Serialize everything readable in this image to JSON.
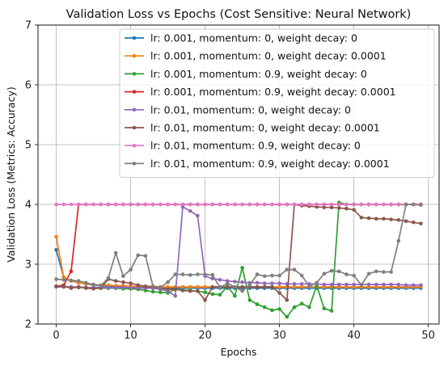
{
  "chart_data": {
    "type": "line",
    "title": "Validation Loss vs Epochs (Cost Sensitive: Neural Network)",
    "xlabel": "Epochs",
    "ylabel": "Validation Loss (Metrics: Accuracy)",
    "xlim": [
      -2.45,
      51.45
    ],
    "ylim": [
      2,
      7
    ],
    "xticks": [
      0,
      10,
      20,
      30,
      40,
      50
    ],
    "yticks": [
      2,
      3,
      4,
      5,
      6,
      7
    ],
    "grid": true,
    "legend_position": "top-right",
    "series": [
      {
        "name": "lr: 0.001, momentum: 0, weight decay: 0",
        "color": "#1f77b4",
        "values": [
          3.24,
          2.78,
          2.72,
          2.69,
          2.67,
          2.65,
          2.64,
          2.63,
          2.62,
          2.62,
          2.61,
          2.61,
          2.61,
          2.61,
          2.6,
          2.6,
          2.6,
          2.6,
          2.6,
          2.6,
          2.6,
          2.6,
          2.6,
          2.6,
          2.6,
          2.6,
          2.6,
          2.6,
          2.6,
          2.6,
          2.6,
          2.6,
          2.6,
          2.6,
          2.6,
          2.6,
          2.6,
          2.6,
          2.6,
          2.6,
          2.6,
          2.6,
          2.6,
          2.6,
          2.6,
          2.6,
          2.6,
          2.6,
          2.6,
          2.6
        ]
      },
      {
        "name": "lr: 0.001, momentum: 0, weight decay: 0.0001",
        "color": "#ff7f0e",
        "values": [
          3.46,
          2.78,
          2.72,
          2.69,
          2.67,
          2.66,
          2.65,
          2.65,
          2.64,
          2.64,
          2.63,
          2.63,
          2.63,
          2.63,
          2.62,
          2.62,
          2.62,
          2.62,
          2.62,
          2.62,
          2.62,
          2.62,
          2.62,
          2.62,
          2.62,
          2.62,
          2.62,
          2.62,
          2.62,
          2.62,
          2.62,
          2.62,
          2.62,
          2.62,
          2.62,
          2.62,
          2.62,
          2.62,
          2.62,
          2.62,
          2.62,
          2.62,
          2.62,
          2.62,
          2.62,
          2.62,
          2.62,
          2.62,
          2.62,
          2.62
        ]
      },
      {
        "name": "lr: 0.001, momentum: 0.9, weight decay: 0",
        "color": "#2ca02c",
        "values": [
          2.63,
          2.62,
          2.62,
          2.61,
          2.61,
          2.61,
          2.6,
          2.6,
          2.6,
          2.59,
          2.59,
          2.58,
          2.56,
          2.54,
          2.53,
          2.52,
          2.58,
          2.57,
          2.56,
          2.55,
          2.53,
          2.5,
          2.49,
          2.63,
          2.47,
          2.94,
          2.4,
          2.33,
          2.28,
          2.23,
          2.25,
          2.12,
          2.28,
          2.34,
          2.28,
          2.64,
          2.26,
          2.22,
          4.03,
          4.0,
          4.0,
          4.0,
          4.0,
          4.0,
          4.0,
          4.0,
          4.0,
          4.0,
          4.0,
          4.0
        ]
      },
      {
        "name": "lr: 0.001, momentum: 0.9, weight decay: 0.0001",
        "color": "#d62728",
        "values": [
          2.63,
          2.65,
          2.88,
          4.0,
          4.0,
          4.0,
          4.0,
          4.0,
          4.0,
          4.0,
          4.0,
          4.0,
          4.0,
          4.0,
          4.0,
          4.0,
          4.0,
          4.0,
          4.0,
          4.0,
          4.0,
          4.0,
          4.0,
          4.0,
          4.0,
          4.0,
          4.0,
          4.0,
          4.0,
          4.0,
          4.0,
          4.0,
          4.0,
          4.0,
          4.0,
          4.0,
          4.0,
          4.0,
          4.0,
          4.0,
          4.0,
          4.0,
          4.0,
          4.0,
          4.0,
          4.0,
          4.0,
          4.0,
          4.0,
          4.0
        ]
      },
      {
        "name": "lr: 0.01, momentum: 0, weight decay: 0",
        "color": "#9467bd",
        "values": [
          2.62,
          2.62,
          2.62,
          2.62,
          2.61,
          2.61,
          2.61,
          2.61,
          2.61,
          2.61,
          2.61,
          2.6,
          2.6,
          2.6,
          2.58,
          2.55,
          2.47,
          3.96,
          3.89,
          3.81,
          2.8,
          2.76,
          2.74,
          2.72,
          2.71,
          2.7,
          2.69,
          2.69,
          2.68,
          2.68,
          2.68,
          2.67,
          2.67,
          2.67,
          2.67,
          2.67,
          2.66,
          2.66,
          2.66,
          2.66,
          2.66,
          2.66,
          2.66,
          2.66,
          2.66,
          2.66,
          2.66,
          2.65,
          2.65,
          2.65
        ]
      },
      {
        "name": "lr: 0.01, momentum: 0, weight decay: 0.0001",
        "color": "#8c564b",
        "values": [
          2.63,
          2.63,
          2.6,
          2.62,
          2.6,
          2.59,
          2.6,
          2.75,
          2.72,
          2.7,
          2.68,
          2.65,
          2.63,
          2.62,
          2.6,
          2.58,
          2.58,
          2.56,
          2.55,
          2.55,
          2.4,
          2.62,
          2.62,
          2.62,
          2.62,
          2.62,
          2.62,
          2.62,
          2.62,
          2.62,
          2.52,
          2.4,
          4.0,
          3.98,
          3.97,
          3.96,
          3.95,
          3.95,
          3.94,
          3.93,
          3.91,
          3.78,
          3.77,
          3.76,
          3.76,
          3.75,
          3.74,
          3.72,
          3.7,
          3.68
        ]
      },
      {
        "name": "lr: 0.01, momentum: 0.9, weight decay: 0",
        "color": "#e377c2",
        "values": [
          4.0,
          4.0,
          4.0,
          4.0,
          4.0,
          4.0,
          4.0,
          4.0,
          4.0,
          4.0,
          4.0,
          4.0,
          4.0,
          4.0,
          4.0,
          4.0,
          4.0,
          4.0,
          4.0,
          4.0,
          4.0,
          4.0,
          4.0,
          4.0,
          4.0,
          4.0,
          4.0,
          4.0,
          4.0,
          4.0,
          4.0,
          4.0,
          4.0,
          4.0,
          4.0,
          4.0,
          4.0,
          4.0,
          4.0,
          4.0,
          4.0,
          4.0,
          4.0,
          4.0,
          4.0,
          4.0,
          4.0,
          4.0,
          4.0,
          4.0
        ]
      },
      {
        "name": "lr: 0.01, momentum: 0.9, weight decay: 0.0001",
        "color": "#7f7f7f",
        "values": [
          2.75,
          2.74,
          2.73,
          2.72,
          2.69,
          2.66,
          2.64,
          2.77,
          3.19,
          2.8,
          2.91,
          3.15,
          3.14,
          2.63,
          2.61,
          2.7,
          2.83,
          2.83,
          2.82,
          2.83,
          2.83,
          2.82,
          2.61,
          2.68,
          2.62,
          2.55,
          2.65,
          2.83,
          2.8,
          2.81,
          2.81,
          2.91,
          2.91,
          2.81,
          2.63,
          2.69,
          2.84,
          2.89,
          2.88,
          2.83,
          2.81,
          2.65,
          2.84,
          2.88,
          2.87,
          2.87,
          3.39,
          4.0,
          4.0,
          3.99
        ]
      }
    ]
  }
}
